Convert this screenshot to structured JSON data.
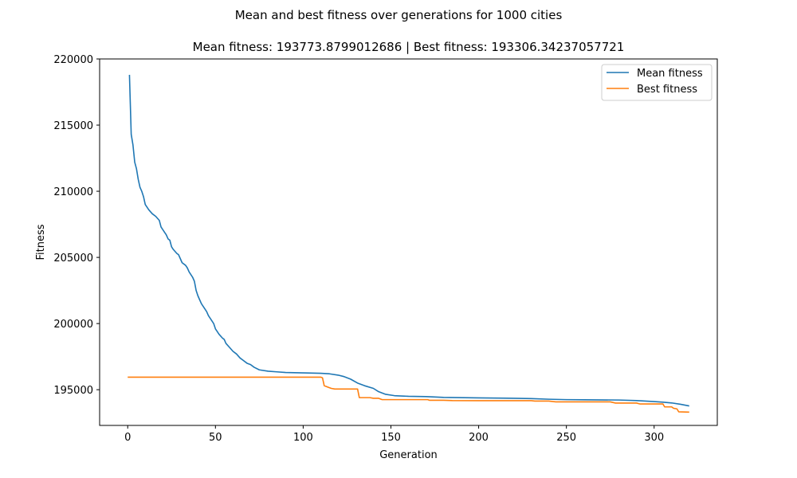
{
  "chart_data": {
    "type": "line",
    "suptitle": "Mean and best fitness over generations for 1000 cities",
    "title": "Mean fitness: 193773.8799012686 | Best fitness: 193306.34237057721",
    "xlabel": "Generation",
    "ylabel": "Fitness",
    "xlim": [
      -16,
      336
    ],
    "ylim": [
      192300,
      220000
    ],
    "xticks": [
      0,
      50,
      100,
      150,
      200,
      250,
      300
    ],
    "yticks": [
      195000,
      200000,
      205000,
      210000,
      215000,
      220000
    ],
    "grid": false,
    "legend_position": "top-right",
    "series": [
      {
        "name": "Mean fitness",
        "color": "#1f77b4",
        "points": [
          [
            1,
            218800
          ],
          [
            2,
            214300
          ],
          [
            3,
            213500
          ],
          [
            4,
            212200
          ],
          [
            5,
            211700
          ],
          [
            6,
            210900
          ],
          [
            7,
            210300
          ],
          [
            8,
            210000
          ],
          [
            9,
            209600
          ],
          [
            10,
            209000
          ],
          [
            12,
            208600
          ],
          [
            14,
            208300
          ],
          [
            16,
            208100
          ],
          [
            18,
            207800
          ],
          [
            19,
            207300
          ],
          [
            21,
            206900
          ],
          [
            22,
            206700
          ],
          [
            23,
            206400
          ],
          [
            24,
            206300
          ],
          [
            25,
            205800
          ],
          [
            26,
            205600
          ],
          [
            28,
            205300
          ],
          [
            29,
            205200
          ],
          [
            30,
            204900
          ],
          [
            31,
            204600
          ],
          [
            33,
            204400
          ],
          [
            34,
            204200
          ],
          [
            35,
            203900
          ],
          [
            37,
            203500
          ],
          [
            38,
            203200
          ],
          [
            39,
            202500
          ],
          [
            40,
            202100
          ],
          [
            41,
            201800
          ],
          [
            42,
            201500
          ],
          [
            44,
            201100
          ],
          [
            45,
            200900
          ],
          [
            46,
            200600
          ],
          [
            48,
            200200
          ],
          [
            49,
            200000
          ],
          [
            50,
            199600
          ],
          [
            51,
            199400
          ],
          [
            52,
            199200
          ],
          [
            54,
            198900
          ],
          [
            55,
            198800
          ],
          [
            56,
            198500
          ],
          [
            58,
            198200
          ],
          [
            60,
            197900
          ],
          [
            62,
            197700
          ],
          [
            64,
            197400
          ],
          [
            66,
            197200
          ],
          [
            68,
            197000
          ],
          [
            70,
            196900
          ],
          [
            72,
            196700
          ],
          [
            75,
            196500
          ],
          [
            80,
            196400
          ],
          [
            85,
            196350
          ],
          [
            90,
            196300
          ],
          [
            100,
            196270
          ],
          [
            110,
            196240
          ],
          [
            115,
            196200
          ],
          [
            120,
            196100
          ],
          [
            123,
            196000
          ],
          [
            127,
            195800
          ],
          [
            131,
            195500
          ],
          [
            135,
            195300
          ],
          [
            140,
            195100
          ],
          [
            143,
            194850
          ],
          [
            147,
            194650
          ],
          [
            152,
            194550
          ],
          [
            160,
            194500
          ],
          [
            170,
            194480
          ],
          [
            180,
            194420
          ],
          [
            200,
            194380
          ],
          [
            220,
            194350
          ],
          [
            230,
            194330
          ],
          [
            240,
            194280
          ],
          [
            250,
            194250
          ],
          [
            260,
            194240
          ],
          [
            280,
            194220
          ],
          [
            290,
            194180
          ],
          [
            300,
            194100
          ],
          [
            305,
            194060
          ],
          [
            310,
            194000
          ],
          [
            315,
            193900
          ],
          [
            320,
            193770
          ]
        ]
      },
      {
        "name": "Best fitness",
        "color": "#ff7f0e",
        "points": [
          [
            0,
            195950
          ],
          [
            110,
            195950
          ],
          [
            111,
            195900
          ],
          [
            112,
            195300
          ],
          [
            114,
            195200
          ],
          [
            116,
            195100
          ],
          [
            118,
            195050
          ],
          [
            131,
            195050
          ],
          [
            132,
            194400
          ],
          [
            138,
            194400
          ],
          [
            140,
            194350
          ],
          [
            143,
            194350
          ],
          [
            145,
            194250
          ],
          [
            171,
            194250
          ],
          [
            172,
            194200
          ],
          [
            180,
            194200
          ],
          [
            185,
            194180
          ],
          [
            200,
            194170
          ],
          [
            230,
            194170
          ],
          [
            232,
            194140
          ],
          [
            240,
            194140
          ],
          [
            244,
            194080
          ],
          [
            275,
            194080
          ],
          [
            278,
            193990
          ],
          [
            290,
            193990
          ],
          [
            292,
            193920
          ],
          [
            305,
            193920
          ],
          [
            306,
            193700
          ],
          [
            310,
            193700
          ],
          [
            311,
            193600
          ],
          [
            313,
            193550
          ],
          [
            314,
            193330
          ],
          [
            320,
            193306
          ]
        ]
      }
    ]
  }
}
